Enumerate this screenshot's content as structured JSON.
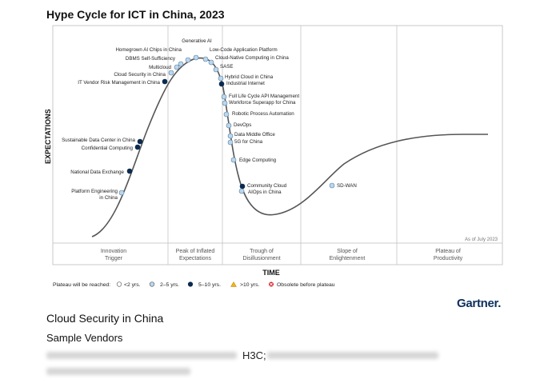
{
  "title": "Hype Cycle for ICT in China, 2023",
  "chart_data": {
    "type": "line",
    "title": "Hype Cycle for ICT in China, 2023",
    "xlabel": "TIME",
    "ylabel": "EXPECTATIONS",
    "note": "As of July 2023",
    "phases": [
      "Innovation Trigger",
      "Peak of Inflated Expectations",
      "Trough of Disillusionment",
      "Slope of Enlightenment",
      "Plateau of Productivity"
    ],
    "points": [
      {
        "label": "Platform Engineering in China",
        "category": "2-5"
      },
      {
        "label": "National Data Exchange",
        "category": "5-10"
      },
      {
        "label": "Confidential Computing",
        "category": "5-10"
      },
      {
        "label": "Sustainable Data Center in China",
        "category": "5-10"
      },
      {
        "label": "IT Vendor Risk Management in China",
        "category": "5-10"
      },
      {
        "label": "Cloud Security in China",
        "category": "2-5"
      },
      {
        "label": "Multicloud",
        "category": "2-5"
      },
      {
        "label": "DBMS Self-Sufficiency",
        "category": "2-5"
      },
      {
        "label": "Homegrown AI Chips in China",
        "category": "2-5"
      },
      {
        "label": "Generative AI",
        "category": "2-5"
      },
      {
        "label": "Low-Code Application Platform",
        "category": "2-5"
      },
      {
        "label": "Cloud-Native Computing in China",
        "category": "2-5"
      },
      {
        "label": "SASE",
        "category": "2-5"
      },
      {
        "label": "Hybrid Cloud in China",
        "category": "2-5"
      },
      {
        "label": "Industrial Internet",
        "category": "5-10"
      },
      {
        "label": "Full Life Cycle API Management",
        "category": "2-5"
      },
      {
        "label": "Workforce Superapp for China",
        "category": "2-5"
      },
      {
        "label": "Robotic Process Automation",
        "category": "2-5"
      },
      {
        "label": "DevOps",
        "category": "2-5"
      },
      {
        "label": "Data Middle Office",
        "category": "2-5"
      },
      {
        "label": "5G for China",
        "category": "2-5"
      },
      {
        "label": "Edge Computing",
        "category": "2-5"
      },
      {
        "label": "Community Cloud",
        "category": "5-10"
      },
      {
        "label": "AIOps in China",
        "category": "2-5"
      },
      {
        "label": "SD-WAN",
        "category": "2-5"
      }
    ],
    "legend": {
      "title": "Plateau will be reached:",
      "items": [
        {
          "key": "lt2",
          "label": "<2 yrs.",
          "color": "#ffffff"
        },
        {
          "key": "2-5",
          "label": "2–5 yrs.",
          "color": "#b9d7ef"
        },
        {
          "key": "5-10",
          "label": "5–10 yrs.",
          "color": "#0b2a4f"
        },
        {
          "key": "gt10",
          "label": ">10 yrs.",
          "color": "#f2b21b"
        },
        {
          "key": "obsolete",
          "label": "Obsolete before plateau",
          "color": "#d9232d"
        }
      ]
    },
    "grid": false
  },
  "brand": "Gartner",
  "section_heading": "Cloud Security in China",
  "vendors_heading": "Sample Vendors",
  "vendor_visible": "H3C;"
}
